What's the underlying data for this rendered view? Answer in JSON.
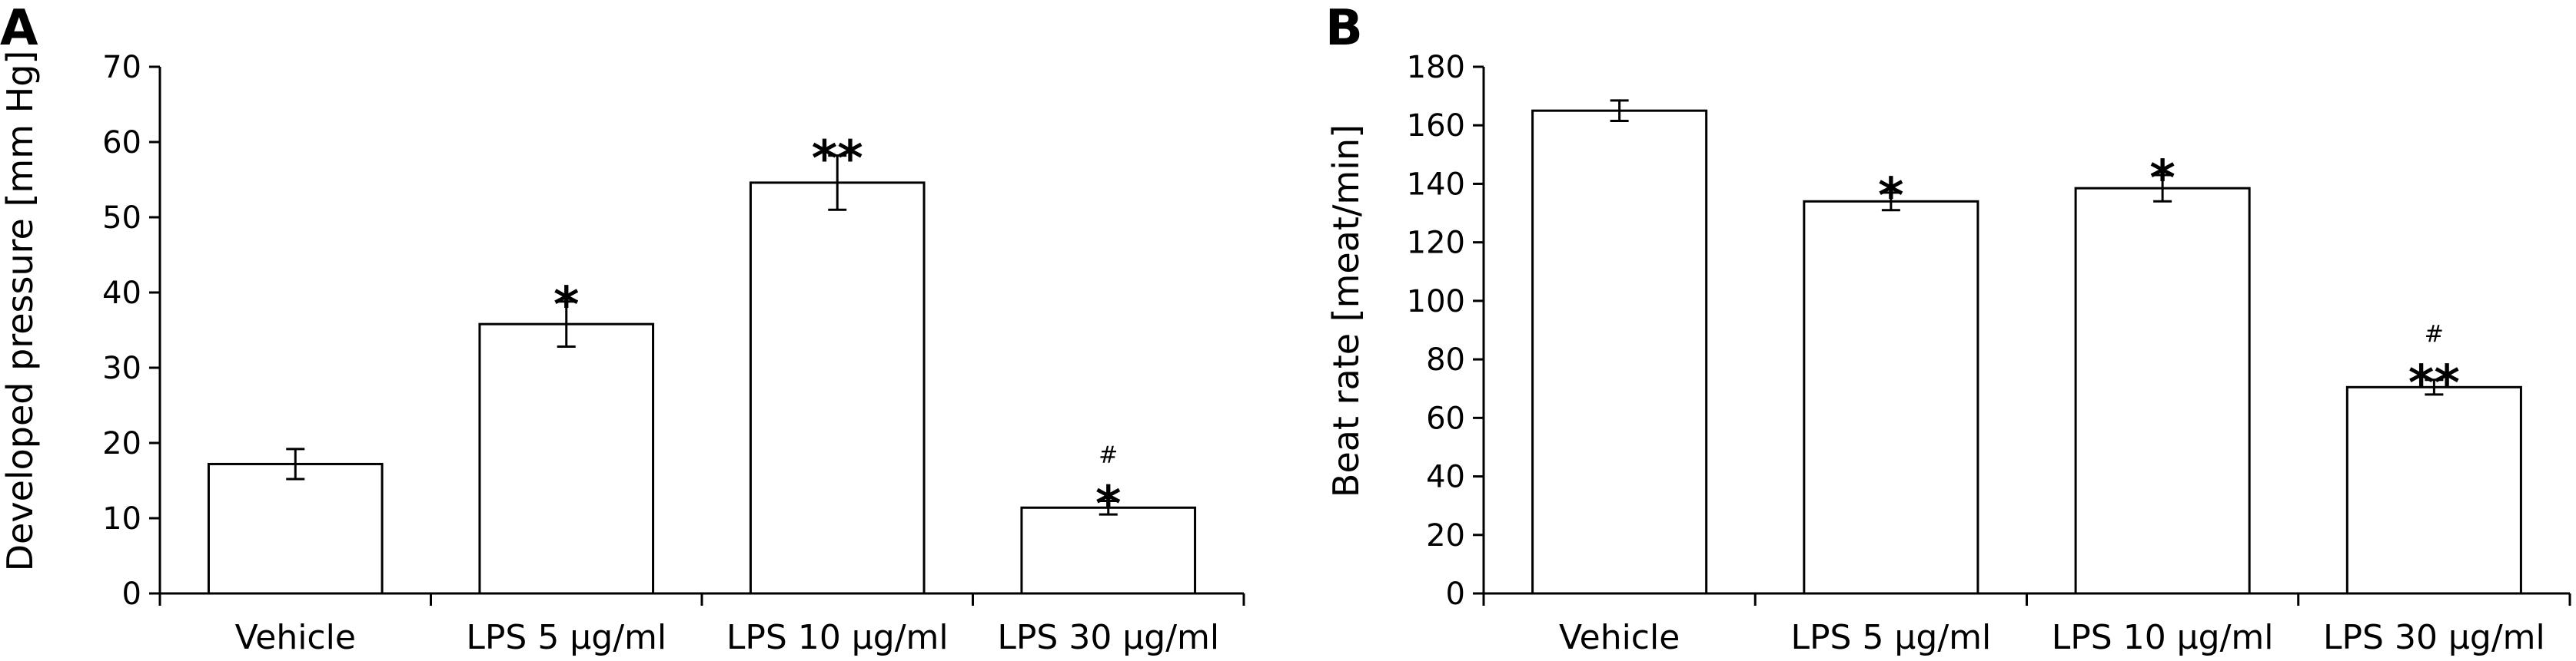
{
  "chart_data": [
    {
      "type": "bar",
      "panel": "A",
      "ylabel": "Developed pressure [mm Hg]",
      "xlabel": "",
      "ylim": [
        0,
        70
      ],
      "yticks": [
        0,
        10,
        20,
        30,
        40,
        50,
        60,
        70
      ],
      "categories": [
        "Vehicle",
        "LPS 5 μg/ml",
        "LPS 10 μg/ml",
        "LPS 30 μg/ml"
      ],
      "values": [
        17.2,
        35.8,
        54.6,
        11.4
      ],
      "errors": [
        2.0,
        3.0,
        3.6,
        0.9
      ],
      "annotations": [
        {
          "star": "",
          "hash": ""
        },
        {
          "star": "*",
          "hash": ""
        },
        {
          "star": "**",
          "hash": ""
        },
        {
          "star": "*",
          "hash": "#"
        }
      ]
    },
    {
      "type": "bar",
      "panel": "B",
      "ylabel": "Beat rate [meat/min]",
      "xlabel": "",
      "ylim": [
        0,
        180
      ],
      "yticks": [
        0,
        20,
        40,
        60,
        80,
        100,
        120,
        140,
        160,
        180
      ],
      "categories": [
        "Vehicle",
        "LPS 5 μg/ml",
        "LPS 10 μg/ml",
        "LPS 30 μg/ml"
      ],
      "values": [
        165,
        134,
        138.5,
        70.5
      ],
      "errors": [
        3.5,
        3.0,
        4.5,
        2.5
      ],
      "annotations": [
        {
          "star": "",
          "hash": ""
        },
        {
          "star": "*",
          "hash": ""
        },
        {
          "star": "*",
          "hash": ""
        },
        {
          "star": "**",
          "hash": "#"
        }
      ]
    }
  ]
}
